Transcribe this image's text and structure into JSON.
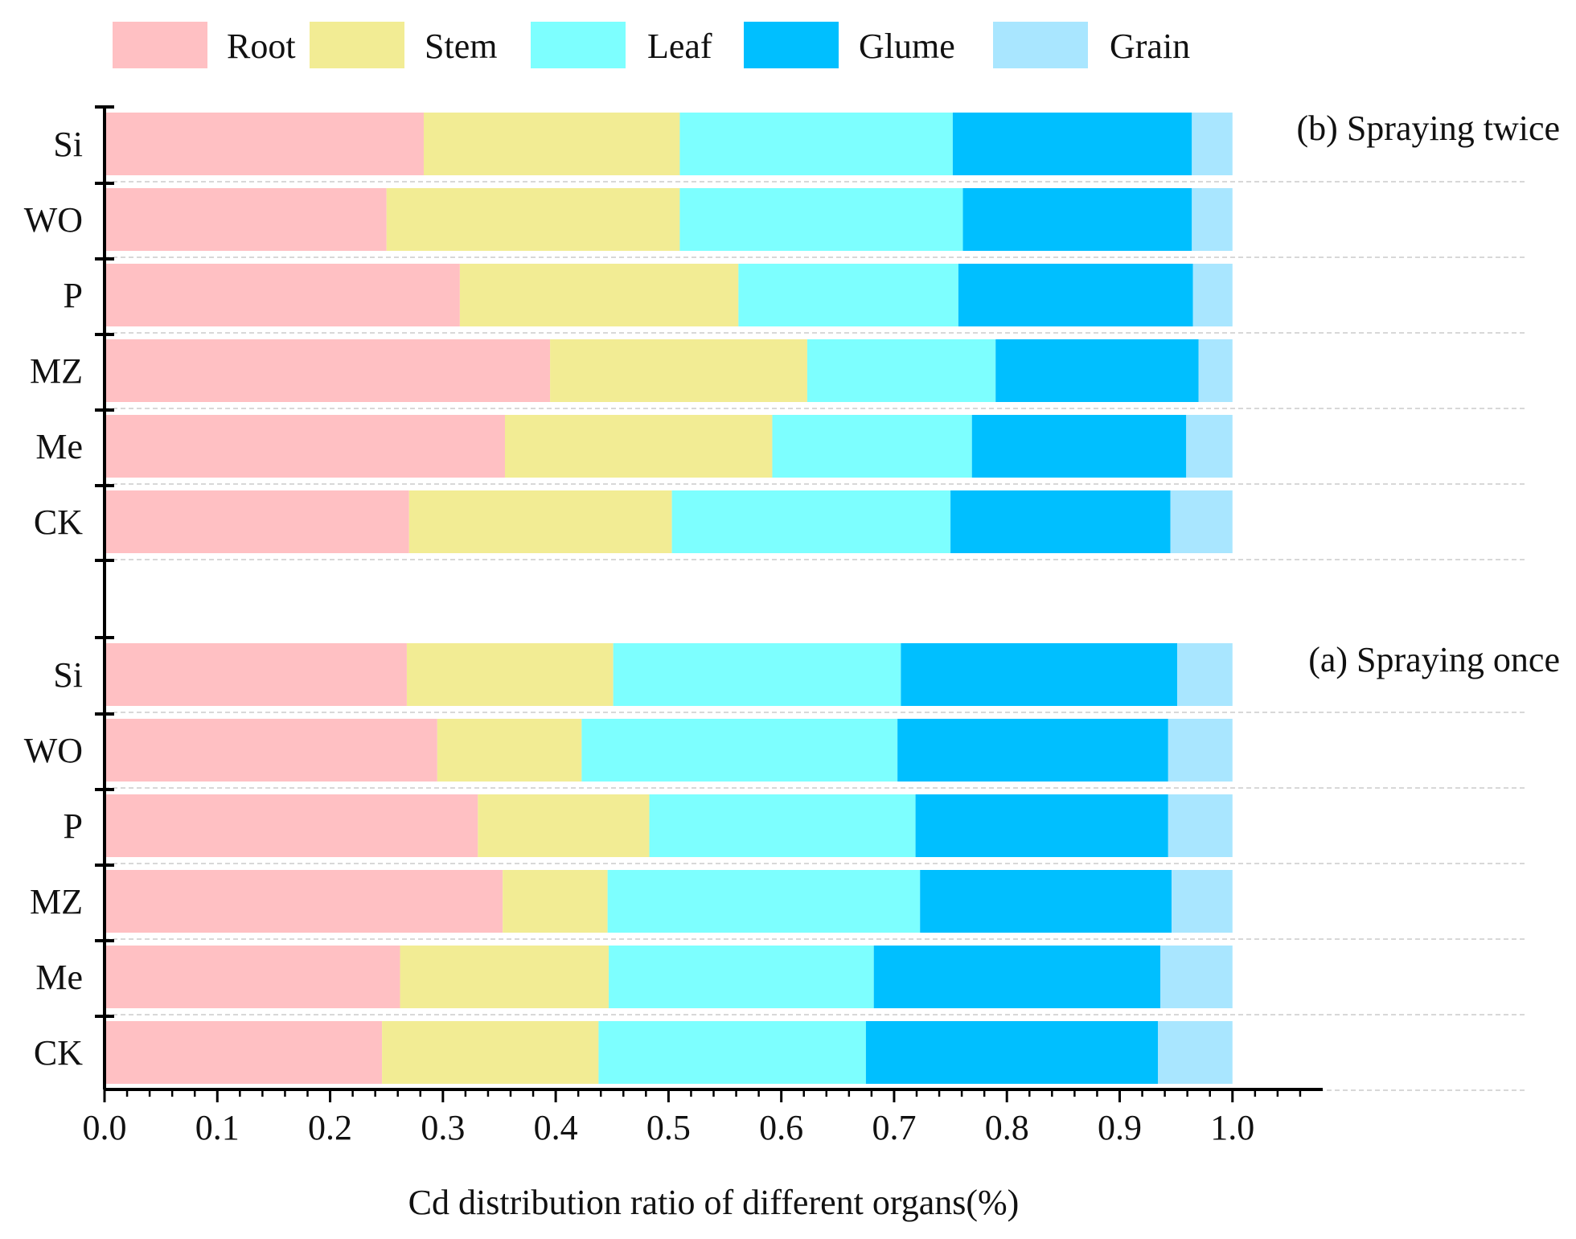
{
  "chart_data": {
    "type": "bar",
    "orientation": "horizontal",
    "stacked": true,
    "xlabel": "Cd distribution ratio of different organs(%)",
    "xlim": [
      0.0,
      1.08
    ],
    "xticks": [
      "0.0",
      "0.1",
      "0.2",
      "0.3",
      "0.4",
      "0.5",
      "0.6",
      "0.7",
      "0.8",
      "0.9",
      "1.0"
    ],
    "legend_position": "top",
    "series_names": [
      "Root",
      "Stem",
      "Leaf",
      "Glume",
      "Grain"
    ],
    "colors": {
      "Root": "#FFC0C3",
      "Stem": "#F2EC94",
      "Leaf": "#7DFFFF",
      "Glume": "#00BFFF",
      "Grain": "#A9E6FF"
    },
    "panels": [
      {
        "title": "(b) Spraying twice",
        "categories": [
          "Si",
          "WO",
          "P",
          "MZ",
          "Me",
          "CK"
        ],
        "series": [
          {
            "name": "Root",
            "values": [
              0.283,
              0.25,
              0.315,
              0.395,
              0.355,
              0.27
            ]
          },
          {
            "name": "Stem",
            "values": [
              0.227,
              0.26,
              0.247,
              0.228,
              0.237,
              0.233
            ]
          },
          {
            "name": "Leaf",
            "values": [
              0.242,
              0.251,
              0.195,
              0.167,
              0.177,
              0.247
            ]
          },
          {
            "name": "Glume",
            "values": [
              0.212,
              0.203,
              0.208,
              0.18,
              0.19,
              0.195
            ]
          },
          {
            "name": "Grain",
            "values": [
              0.036,
              0.036,
              0.035,
              0.03,
              0.041,
              0.055
            ]
          }
        ]
      },
      {
        "title": "(a) Spraying once",
        "categories": [
          "Si",
          "WO",
          "P",
          "MZ",
          "Me",
          "CK"
        ],
        "series": [
          {
            "name": "Root",
            "values": [
              0.268,
              0.295,
              0.331,
              0.353,
              0.262,
              0.246
            ]
          },
          {
            "name": "Stem",
            "values": [
              0.183,
              0.128,
              0.152,
              0.093,
              0.185,
              0.192
            ]
          },
          {
            "name": "Leaf",
            "values": [
              0.255,
              0.28,
              0.236,
              0.277,
              0.235,
              0.237
            ]
          },
          {
            "name": "Glume",
            "values": [
              0.245,
              0.24,
              0.224,
              0.223,
              0.254,
              0.259
            ]
          },
          {
            "name": "Grain",
            "values": [
              0.049,
              0.057,
              0.057,
              0.054,
              0.064,
              0.066
            ]
          }
        ]
      }
    ]
  }
}
